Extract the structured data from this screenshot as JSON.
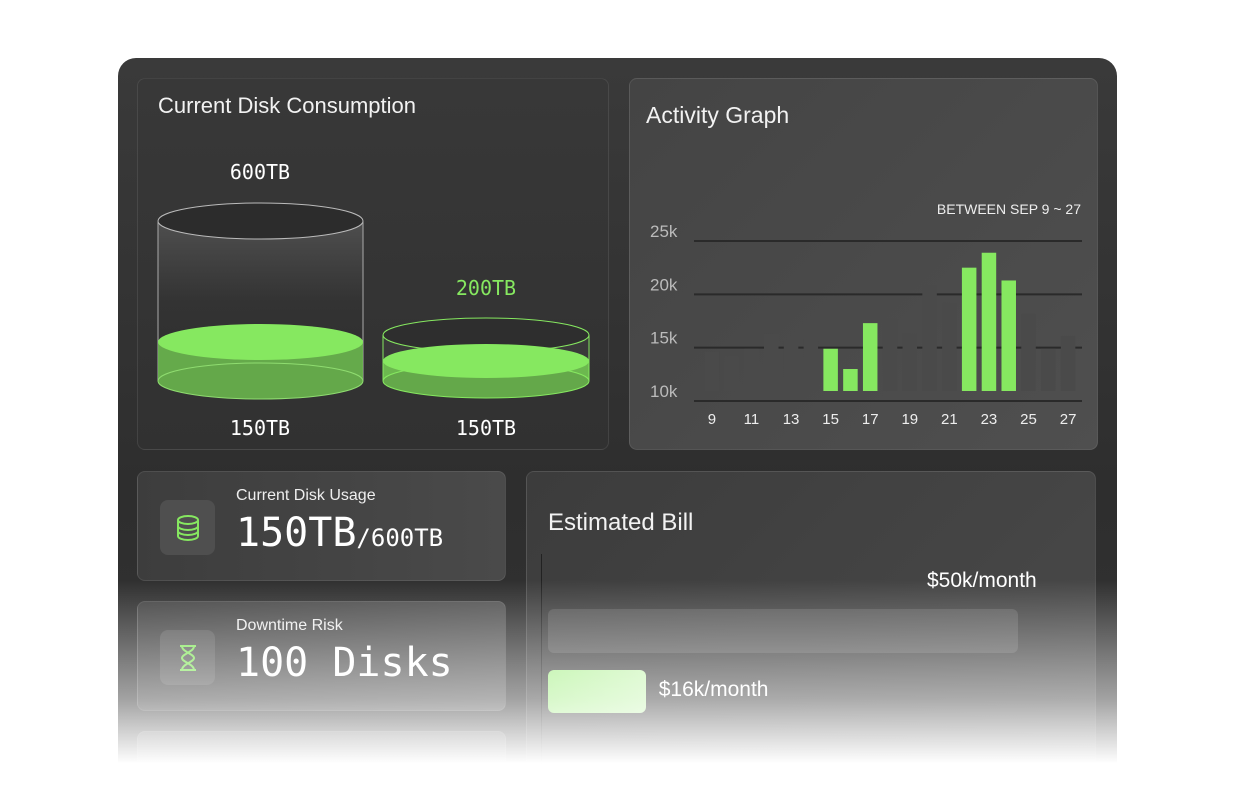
{
  "disk_consumption": {
    "title": "Current Disk Consumption",
    "left": {
      "capacity_label": "600TB",
      "used_label": "150TB"
    },
    "right": {
      "capacity_label": "200TB",
      "used_label": "150TB"
    }
  },
  "activity": {
    "title": "Activity Graph",
    "range_label": "BETWEEN SEP 9 ~ 27"
  },
  "usage": {
    "label": "Current Disk Usage",
    "value": "150TB",
    "total": "/600TB",
    "icon": "database-icon"
  },
  "risk": {
    "label": "Downtime Risk",
    "value": "100 Disks",
    "icon": "hourglass-icon"
  },
  "bill": {
    "title": "Estimated Bill",
    "max_label": "$50k/month",
    "current_label": "$16k/month",
    "current_fraction": 0.32
  },
  "colors": {
    "accent": "#86e860",
    "bar_grey": "#4a4a4a",
    "panel": "#333333"
  },
  "chart_data": {
    "type": "bar",
    "title": "Activity Graph",
    "x": [
      9,
      10,
      11,
      12,
      13,
      14,
      15,
      16,
      17,
      18,
      19,
      20,
      21,
      22,
      23,
      24,
      25,
      26,
      27
    ],
    "x_tick_labels": [
      "9",
      "11",
      "13",
      "15",
      "17",
      "19",
      "21",
      "23",
      "25",
      "27"
    ],
    "values": [
      14.6,
      14.2,
      14.9,
      16.3,
      15.6,
      15.8,
      14.9,
      13.0,
      17.3,
      17.7,
      16.3,
      20.8,
      19.2,
      22.5,
      23.9,
      21.3,
      18.2,
      14.9,
      16.1
    ],
    "highlighted": [
      15,
      16,
      17,
      22,
      23,
      24
    ],
    "y_tick_labels": [
      "25k",
      "20k",
      "15k",
      "10k"
    ],
    "ylim": [
      10,
      25
    ],
    "grid": true
  }
}
